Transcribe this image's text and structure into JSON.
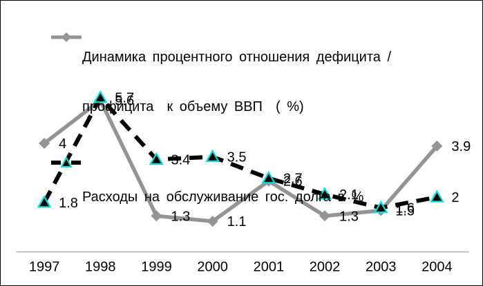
{
  "legend": {
    "items": [
      {
        "line1": "Динамика процентного отношения дефицита /",
        "line2": "профицита  к объему ВВП  ( %)"
      },
      {
        "line1": "Расходы на обслуживание гос. долга в %"
      }
    ]
  },
  "colors": {
    "series1": "#949494",
    "series2": "#000000",
    "series2_marker_stroke": "#00e0e0",
    "axis_line": "#a0a0a0",
    "label_text": "#000000",
    "background": "#ffffff",
    "frame_border": "#000000"
  },
  "chart_data": {
    "type": "line",
    "categories": [
      "1997",
      "1998",
      "1999",
      "2000",
      "2001",
      "2002",
      "2003",
      "2004"
    ],
    "series": [
      {
        "name": "Динамика процентного отношения дефицита / профицита  к объему ВВП  ( %)",
        "values": [
          4,
          5.6,
          1.3,
          1.1,
          2.6,
          1.3,
          1.5,
          3.9
        ],
        "labels": [
          "4",
          "5.6",
          "1.3",
          "1.1",
          "2.6",
          "1.3",
          "1.5",
          "3.9"
        ],
        "color": "#949494",
        "marker": "diamond",
        "line_style": "solid"
      },
      {
        "name": "Расходы на обслуживание гос. долга в %",
        "values": [
          1.8,
          5.7,
          3.4,
          3.5,
          2.7,
          2.1,
          1.6,
          2
        ],
        "labels": [
          "1.8",
          "5.7",
          "3.4",
          "3.5",
          "2.7",
          "2.1",
          "1.6",
          "2"
        ],
        "color": "#000000",
        "marker": "triangle",
        "line_style": "dashed"
      }
    ],
    "ylim": [
      0,
      6.2
    ],
    "grid": false,
    "y_axis_visible": false,
    "x_axis_visible": true,
    "legend_position": "top-left",
    "data_labels_position": "right"
  }
}
